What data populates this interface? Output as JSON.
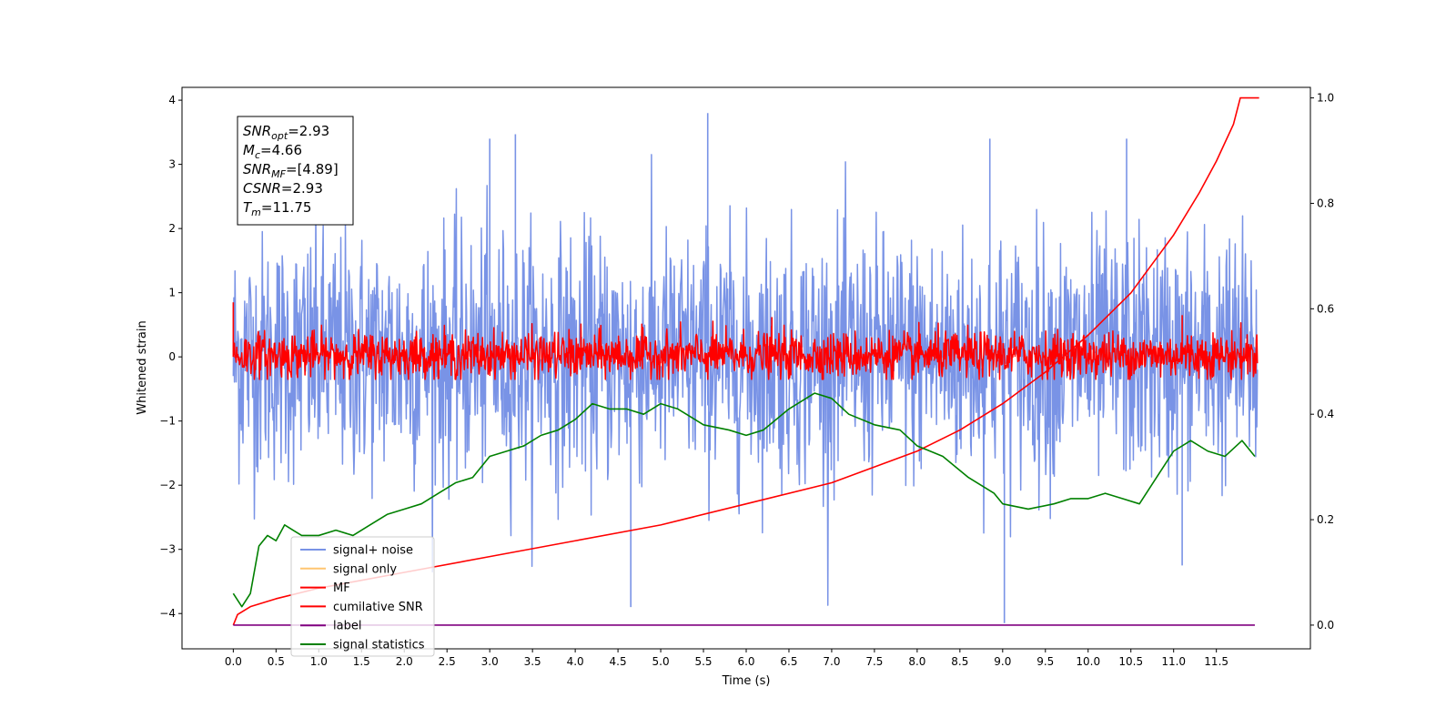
{
  "chart_data": {
    "type": "line",
    "xlabel": "Time (s)",
    "ylabel": "Whitened strain",
    "xlim": [
      -0.6,
      12.6
    ],
    "ylim_left": [
      -4.55,
      4.2
    ],
    "ylim_right": [
      -0.045,
      1.02
    ],
    "x_ticks": [
      0.0,
      0.5,
      1.0,
      1.5,
      2.0,
      2.5,
      3.0,
      3.5,
      4.0,
      4.5,
      5.0,
      5.5,
      6.0,
      6.5,
      7.0,
      7.5,
      8.0,
      8.5,
      9.0,
      9.5,
      10.0,
      10.5,
      11.0,
      11.5
    ],
    "x_tick_labels": [
      "0.0",
      "0.5",
      "1.0",
      "1.5",
      "2.0",
      "2.5",
      "3.0",
      "3.5",
      "4.0",
      "4.5",
      "5.0",
      "5.5",
      "6.0",
      "6.5",
      "7.0",
      "7.5",
      "8.0",
      "8.5",
      "9.0",
      "9.5",
      "10.0",
      "10.5",
      "11.0",
      "11.5"
    ],
    "y_left_ticks": [
      -4,
      -3,
      -2,
      -1,
      0,
      1,
      2,
      3,
      4
    ],
    "y_left_tick_labels": [
      "−4",
      "−3",
      "−2",
      "−1",
      "0",
      "1",
      "2",
      "3",
      "4"
    ],
    "y_right_ticks": [
      0.0,
      0.2,
      0.4,
      0.6,
      0.8,
      1.0
    ],
    "y_right_tick_labels": [
      "0.0",
      "0.2",
      "0.4",
      "0.6",
      "0.8",
      "1.0"
    ],
    "grid": false,
    "legend_position": "lower-left",
    "annotation": {
      "lines": [
        {
          "main": "SNR",
          "sub": "opt",
          "rest": "=2.93"
        },
        {
          "main": "M",
          "sub": "c",
          "rest": "=4.66"
        },
        {
          "main": "SNR",
          "sub": "MF",
          "rest": "=[4.89]"
        },
        {
          "main": "CSNR",
          "sub": "",
          "rest": "=2.93"
        },
        {
          "main": "T",
          "sub": "m",
          "rest": "=11.75"
        }
      ]
    },
    "series": [
      {
        "name": "signal+ noise",
        "axis": "left",
        "color": "#7993e6",
        "kind": "noise",
        "x_range": [
          0.0,
          11.98
        ],
        "center": 0.0,
        "band": [
          -1.75,
          1.75
        ],
        "extremes": [
          -4.15,
          3.8
        ],
        "spikes": [
          {
            "x": 5.55,
            "y": 3.8
          },
          {
            "x": 3.3,
            "y": 3.47
          },
          {
            "x": 3.0,
            "y": 3.4
          },
          {
            "x": 8.85,
            "y": 3.4
          },
          {
            "x": 10.45,
            "y": 3.4
          },
          {
            "x": 4.65,
            "y": -3.9
          },
          {
            "x": 9.02,
            "y": -4.15
          },
          {
            "x": 11.1,
            "y": -3.25
          }
        ]
      },
      {
        "name": "signal only",
        "axis": "left",
        "color": "#ffc570",
        "kind": "hidden"
      },
      {
        "name": "MF",
        "axis": "left",
        "color": "#ff0000",
        "kind": "noise",
        "x_range": [
          0.0,
          11.98
        ],
        "center": 0.0,
        "band": [
          -0.3,
          0.35
        ],
        "extremes": [
          -0.35,
          0.8
        ],
        "spikes": [
          {
            "x": 0.0,
            "y": 0.85
          },
          {
            "x": 11.1,
            "y": 0.65
          },
          {
            "x": 6.3,
            "y": 0.62
          }
        ]
      },
      {
        "name": "cumilative SNR",
        "axis": "right",
        "color": "#ff0000",
        "kind": "line",
        "x": [
          0.0,
          0.05,
          0.2,
          0.5,
          1.0,
          1.5,
          2.0,
          3.0,
          4.0,
          5.0,
          6.0,
          7.0,
          8.0,
          8.5,
          9.0,
          9.5,
          10.0,
          10.5,
          11.0,
          11.3,
          11.5,
          11.7,
          11.78,
          12.0
        ],
        "y": [
          0.0,
          0.02,
          0.035,
          0.05,
          0.07,
          0.085,
          0.1,
          0.13,
          0.16,
          0.19,
          0.23,
          0.27,
          0.33,
          0.37,
          0.42,
          0.48,
          0.55,
          0.63,
          0.74,
          0.82,
          0.88,
          0.95,
          1.0,
          1.0
        ]
      },
      {
        "name": "label",
        "axis": "right",
        "color": "#800080",
        "kind": "line",
        "x": [
          0.0,
          11.95
        ],
        "y": [
          0.0,
          0.0
        ]
      },
      {
        "name": "signal statistics",
        "axis": "right",
        "color": "#008000",
        "kind": "line",
        "x": [
          0.0,
          0.1,
          0.2,
          0.3,
          0.4,
          0.5,
          0.6,
          0.7,
          0.8,
          1.0,
          1.2,
          1.4,
          1.6,
          1.8,
          2.0,
          2.2,
          2.4,
          2.6,
          2.8,
          3.0,
          3.2,
          3.4,
          3.6,
          3.8,
          4.0,
          4.2,
          4.4,
          4.6,
          4.8,
          5.0,
          5.2,
          5.5,
          5.8,
          6.0,
          6.2,
          6.5,
          6.8,
          7.0,
          7.2,
          7.5,
          7.8,
          8.0,
          8.3,
          8.6,
          8.9,
          9.0,
          9.3,
          9.6,
          9.8,
          10.0,
          10.2,
          10.4,
          10.6,
          10.8,
          11.0,
          11.2,
          11.4,
          11.6,
          11.8,
          11.95
        ],
        "y": [
          0.06,
          0.035,
          0.06,
          0.15,
          0.17,
          0.16,
          0.19,
          0.18,
          0.17,
          0.17,
          0.18,
          0.17,
          0.19,
          0.21,
          0.22,
          0.23,
          0.25,
          0.27,
          0.28,
          0.32,
          0.33,
          0.34,
          0.36,
          0.37,
          0.39,
          0.42,
          0.41,
          0.41,
          0.4,
          0.42,
          0.41,
          0.38,
          0.37,
          0.36,
          0.37,
          0.41,
          0.44,
          0.43,
          0.4,
          0.38,
          0.37,
          0.34,
          0.32,
          0.28,
          0.25,
          0.23,
          0.22,
          0.23,
          0.24,
          0.24,
          0.25,
          0.24,
          0.23,
          0.28,
          0.33,
          0.35,
          0.33,
          0.32,
          0.35,
          0.32
        ]
      }
    ]
  }
}
